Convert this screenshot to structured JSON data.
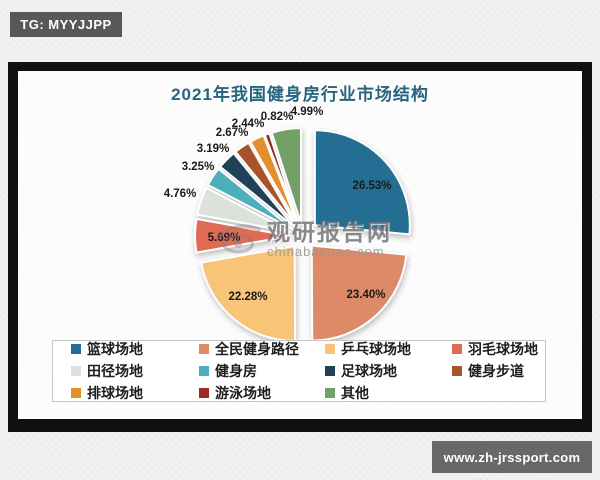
{
  "badges": {
    "tg": "TG: MYYJJPP",
    "website": "www.zh-jrssport.com"
  },
  "watermark": {
    "brand": "观研报告网",
    "domain": "chinabaogao.com"
  },
  "chart_data": {
    "type": "pie",
    "title": "2021年我国健身房行业市场结构",
    "title_color": "#26657F",
    "legend_position": "bottom",
    "start_angle_deg": 0,
    "direction": "clockwise",
    "exploded": true,
    "slices": [
      {
        "label": "篮球场地",
        "value": 26.53,
        "color": "#256E93",
        "label_placement": "inside"
      },
      {
        "label": "全民健身路径",
        "value": 23.4,
        "color": "#DC8A68",
        "label_placement": "inside"
      },
      {
        "label": "乒乓球场地",
        "value": 22.28,
        "color": "#F8C478",
        "label_placement": "inside"
      },
      {
        "label": "羽毛球场地",
        "value": 5.69,
        "color": "#DF6B55",
        "label_placement": "inside"
      },
      {
        "label": "田径场地",
        "value": 4.76,
        "color": "#DCE2DA",
        "label_placement": "outside"
      },
      {
        "label": "健身房",
        "value": 3.25,
        "color": "#4DAEBC",
        "label_placement": "outside"
      },
      {
        "label": "足球场地",
        "value": 3.19,
        "color": "#1F4257",
        "label_placement": "outside"
      },
      {
        "label": "健身步道",
        "value": 2.67,
        "color": "#A8542A",
        "label_placement": "outside"
      },
      {
        "label": "排球场地",
        "value": 2.44,
        "color": "#E2902B",
        "label_placement": "outside"
      },
      {
        "label": "游泳场地",
        "value": 0.82,
        "color": "#9C2A22",
        "label_placement": "outside"
      },
      {
        "label": "其他",
        "value": 4.99,
        "color": "#73A065",
        "label_placement": "outside"
      }
    ]
  }
}
